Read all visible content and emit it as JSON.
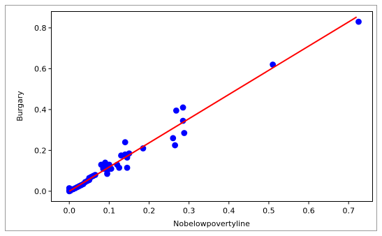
{
  "chart_data": {
    "type": "scatter",
    "title": "",
    "xlabel": "Nobelowpovertyline",
    "ylabel": "Burgary",
    "xlim": [
      -0.045,
      0.76
    ],
    "ylim": [
      -0.05,
      0.88
    ],
    "xticks": [
      0.0,
      0.1,
      0.2,
      0.3,
      0.4,
      0.5,
      0.6,
      0.7
    ],
    "xtick_labels": [
      "0.0",
      "0.1",
      "0.2",
      "0.3",
      "0.4",
      "0.5",
      "0.6",
      "0.7"
    ],
    "yticks": [
      0.0,
      0.2,
      0.4,
      0.6,
      0.8
    ],
    "ytick_labels": [
      "0.0",
      "0.2",
      "0.4",
      "0.6",
      "0.8"
    ],
    "grid": false,
    "legend": "none",
    "colors": {
      "points": "#0000ff",
      "fit_line": "#ff0000"
    },
    "series": [
      {
        "type": "scatter",
        "points": [
          [
            0.0,
            0.0
          ],
          [
            0.0,
            0.005
          ],
          [
            0.0,
            0.015
          ],
          [
            0.003,
            0.003
          ],
          [
            0.005,
            0.01
          ],
          [
            0.01,
            0.01
          ],
          [
            0.015,
            0.015
          ],
          [
            0.02,
            0.02
          ],
          [
            0.025,
            0.025
          ],
          [
            0.03,
            0.03
          ],
          [
            0.035,
            0.035
          ],
          [
            0.04,
            0.045
          ],
          [
            0.045,
            0.05
          ],
          [
            0.05,
            0.055
          ],
          [
            0.05,
            0.065
          ],
          [
            0.055,
            0.07
          ],
          [
            0.06,
            0.075
          ],
          [
            0.065,
            0.08
          ],
          [
            0.08,
            0.13
          ],
          [
            0.085,
            0.11
          ],
          [
            0.09,
            0.14
          ],
          [
            0.09,
            0.12
          ],
          [
            0.095,
            0.1
          ],
          [
            0.095,
            0.085
          ],
          [
            0.1,
            0.13
          ],
          [
            0.105,
            0.11
          ],
          [
            0.12,
            0.13
          ],
          [
            0.125,
            0.115
          ],
          [
            0.13,
            0.175
          ],
          [
            0.14,
            0.18
          ],
          [
            0.14,
            0.24
          ],
          [
            0.145,
            0.115
          ],
          [
            0.145,
            0.165
          ],
          [
            0.15,
            0.185
          ],
          [
            0.185,
            0.21
          ],
          [
            0.26,
            0.26
          ],
          [
            0.265,
            0.225
          ],
          [
            0.268,
            0.395
          ],
          [
            0.285,
            0.41
          ],
          [
            0.285,
            0.345
          ],
          [
            0.288,
            0.285
          ],
          [
            0.51,
            0.62
          ],
          [
            0.725,
            0.83
          ]
        ]
      },
      {
        "type": "line",
        "points": [
          [
            0.0,
            0.0
          ],
          [
            0.72,
            0.853
          ]
        ]
      }
    ]
  }
}
